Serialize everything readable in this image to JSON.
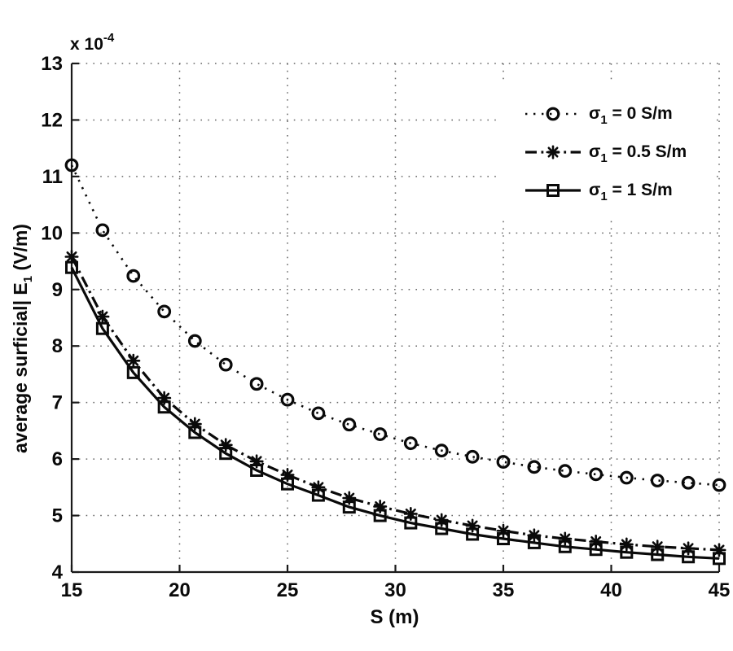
{
  "figure": {
    "background": "#ffffff"
  },
  "chart_data": {
    "type": "line",
    "title": "",
    "xlabel": "S (m)",
    "ylabel": "average surficial| E_1 (V/m)",
    "ylabel_parts": {
      "pre": "average surficial| E",
      "sub": "1",
      "post": " (V/m)"
    },
    "y_scale_exponent": {
      "base": "x 10",
      "power": "-4"
    },
    "xlim": [
      15,
      45
    ],
    "ylim": [
      4,
      13
    ],
    "x_ticks": [
      15,
      20,
      25,
      30,
      35,
      40,
      45
    ],
    "y_ticks": [
      4,
      5,
      6,
      7,
      8,
      9,
      10,
      11,
      12,
      13
    ],
    "grid": "dotted",
    "legend_position": "upper-right",
    "ink_color": "#0a0a0a",
    "axis_color": "#1a1a1a",
    "grid_color": "#666666",
    "x": [
      15,
      16.43,
      17.86,
      19.29,
      20.71,
      22.14,
      23.57,
      25,
      26.43,
      27.86,
      29.29,
      30.71,
      32.14,
      33.57,
      35,
      36.43,
      37.86,
      39.29,
      40.71,
      42.14,
      43.57,
      45
    ],
    "series": [
      {
        "id": "sigma-0",
        "name": "sigma_1 = 0 S/m",
        "label": {
          "pre": "σ",
          "sub": "1",
          "post": " = 0 S/m"
        },
        "line": "dotted",
        "marker": "circle",
        "values": [
          11.2,
          10.05,
          9.24,
          8.61,
          8.09,
          7.67,
          7.33,
          7.05,
          6.81,
          6.61,
          6.44,
          6.28,
          6.15,
          6.04,
          5.95,
          5.86,
          5.79,
          5.73,
          5.67,
          5.62,
          5.58,
          5.54
        ]
      },
      {
        "id": "sigma-05",
        "name": "sigma_1 = 0.5 S/m",
        "label": {
          "pre": "σ",
          "sub": "1",
          "post": " = 0.5 S/m"
        },
        "line": "dashdot",
        "marker": "asterisk",
        "values": [
          9.58,
          8.52,
          7.74,
          7.08,
          6.62,
          6.25,
          5.96,
          5.72,
          5.5,
          5.31,
          5.16,
          5.03,
          4.92,
          4.82,
          4.73,
          4.65,
          4.59,
          4.54,
          4.49,
          4.45,
          4.42,
          4.39
        ]
      },
      {
        "id": "sigma-1",
        "name": "sigma_1 = 1 S/m",
        "label": {
          "pre": "σ",
          "sub": "1",
          "post": " = 1 S/m"
        },
        "line": "solid",
        "marker": "square",
        "values": [
          9.39,
          8.31,
          7.53,
          6.92,
          6.47,
          6.1,
          5.8,
          5.56,
          5.36,
          5.15,
          5.0,
          4.87,
          4.77,
          4.67,
          4.59,
          4.52,
          4.45,
          4.4,
          4.35,
          4.31,
          4.27,
          4.24
        ]
      }
    ]
  }
}
